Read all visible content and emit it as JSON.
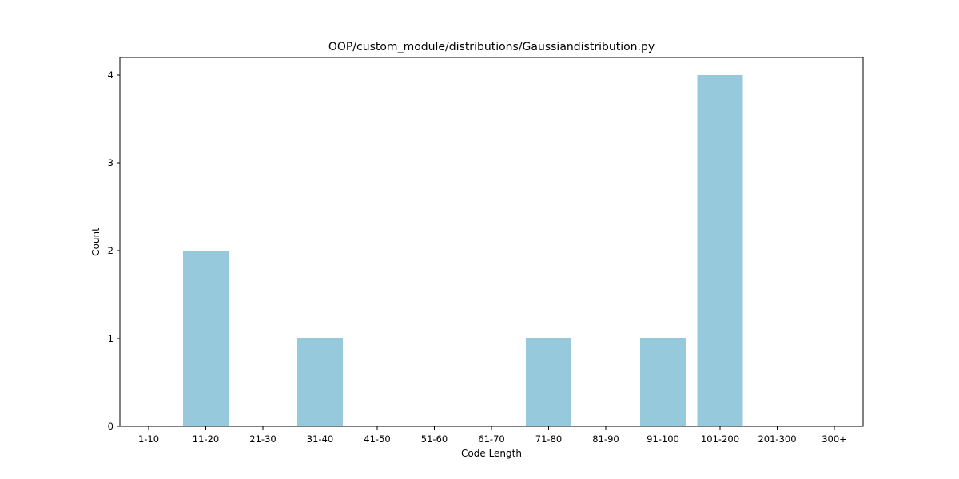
{
  "chart_data": {
    "type": "bar",
    "title": "OOP/custom_module/distributions/Gaussiandistribution.py",
    "xlabel": "Code Length",
    "ylabel": "Count",
    "categories": [
      "1-10",
      "11-20",
      "21-30",
      "31-40",
      "41-50",
      "51-60",
      "61-70",
      "71-80",
      "81-90",
      "91-100",
      "101-200",
      "201-300",
      "300+"
    ],
    "values": [
      0,
      2,
      0,
      1,
      0,
      0,
      0,
      1,
      0,
      1,
      4,
      0,
      0
    ],
    "yticks": [
      0,
      1,
      2,
      3,
      4
    ],
    "ylim": [
      0,
      4.2
    ],
    "grid": false,
    "bar_color": "#96c9dc"
  }
}
